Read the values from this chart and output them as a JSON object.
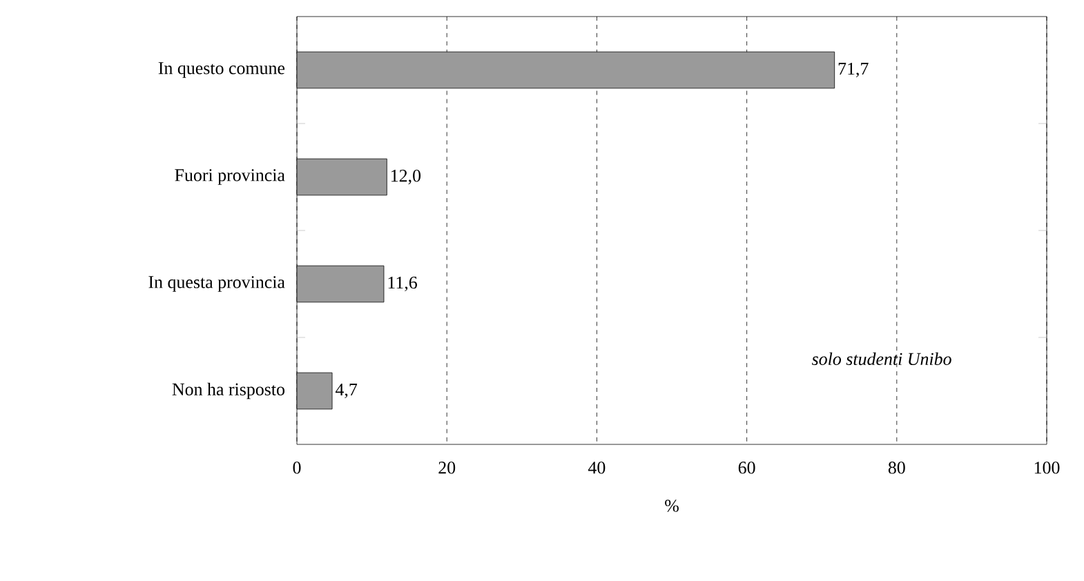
{
  "chart_data": {
    "type": "bar",
    "orientation": "horizontal",
    "categories": [
      "In questo comune",
      "Fuori provincia",
      "In questa provincia",
      "Non ha risposto"
    ],
    "values": [
      71.7,
      12.0,
      11.6,
      4.7
    ],
    "value_labels": [
      "71,7",
      "12,0",
      "11,6",
      "4,7"
    ],
    "color": "#9a9a9a",
    "xlim": [
      0,
      100
    ],
    "xticks": [
      0,
      20,
      40,
      60,
      80,
      100
    ],
    "xlabel": "%",
    "grid": "x",
    "annotations": [
      "solo studenti Unibo"
    ]
  }
}
